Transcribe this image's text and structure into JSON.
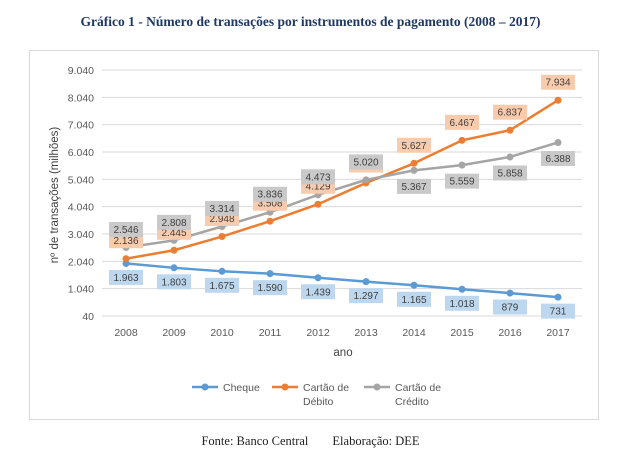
{
  "title": "Gráfico 1 - Número de transações por instrumentos de pagamento (2008 – 2017)",
  "footer": {
    "source": "Fonte: Banco Central",
    "credit": "Elaboração: DEE"
  },
  "chart_data": {
    "type": "line",
    "x": [
      "2008",
      "2009",
      "2010",
      "2011",
      "2012",
      "2013",
      "2014",
      "2015",
      "2016",
      "2017"
    ],
    "xlabel": "ano",
    "ylabel": "nº de transações (milhões)",
    "ylim": [
      40,
      9040
    ],
    "yticks": [
      "40",
      "1.040",
      "2.040",
      "3.040",
      "4.040",
      "5.040",
      "6.040",
      "7.040",
      "8.040",
      "9.040"
    ],
    "grid": true,
    "legend_position": "bottom",
    "series": [
      {
        "key": "cheque",
        "name": "Cheque",
        "color": "#5b9bd5",
        "label_bg": "#bdd7ee",
        "values": [
          1963,
          1803,
          1675,
          1590,
          1439,
          1297,
          1165,
          1018,
          879,
          731
        ],
        "labels": [
          "1.963",
          "1.803",
          "1.675",
          "1.590",
          "1.439",
          "1.297",
          "1.165",
          "1.018",
          "879",
          "731"
        ]
      },
      {
        "key": "debito",
        "name": "Cartão de Débito",
        "color": "#ed7d31",
        "label_bg": "#f8cbad",
        "values": [
          2136,
          2445,
          2948,
          3508,
          4129,
          4908,
          5627,
          6467,
          6837,
          7934
        ],
        "labels": [
          "2.136",
          "2.445",
          "2.948",
          "3.508",
          "4.129",
          "4.908",
          "5.627",
          "6.467",
          "6.837",
          "7.934"
        ]
      },
      {
        "key": "credito",
        "name": "Cartão de Crédito",
        "color": "#a5a5a5",
        "label_bg": "#c9c9c9",
        "values": [
          2546,
          2808,
          3314,
          3836,
          4473,
          5020,
          5367,
          5559,
          5858,
          6388
        ],
        "labels": [
          "2.546",
          "2.808",
          "3.314",
          "3.836",
          "4.473",
          "5.020",
          "5.367",
          "5.559",
          "5.858",
          "6.388"
        ]
      }
    ],
    "legend": [
      {
        "series": "cheque",
        "lines": [
          "Cheque"
        ]
      },
      {
        "series": "debito",
        "lines": [
          "Cartão de",
          "Débito"
        ]
      },
      {
        "series": "credito",
        "lines": [
          "Cartão de",
          "Crédito"
        ]
      }
    ]
  }
}
